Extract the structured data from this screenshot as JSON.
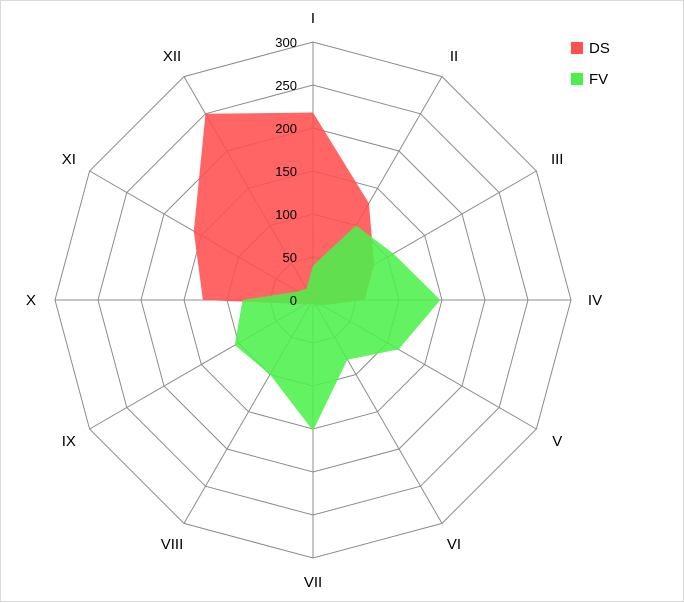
{
  "chart_data": {
    "type": "radar",
    "categories": [
      "I",
      "II",
      "III",
      "IV",
      "V",
      "VI",
      "VII",
      "VIII",
      "IX",
      "X",
      "XI",
      "XII"
    ],
    "r_ticks": [
      "0",
      "50",
      "100",
      "150",
      "200",
      "250",
      "300"
    ],
    "rlim": [
      0,
      300
    ],
    "legend_position": "top-right",
    "series": [
      {
        "name": "DS",
        "color": "#ff5050",
        "values": [
          218,
          130,
          82,
          60,
          12,
          8,
          5,
          5,
          10,
          128,
          160,
          250
        ]
      },
      {
        "name": "FV",
        "color": "#4cf04c",
        "values": [
          40,
          100,
          108,
          148,
          115,
          80,
          152,
          100,
          105,
          82,
          20,
          15
        ]
      }
    ]
  }
}
